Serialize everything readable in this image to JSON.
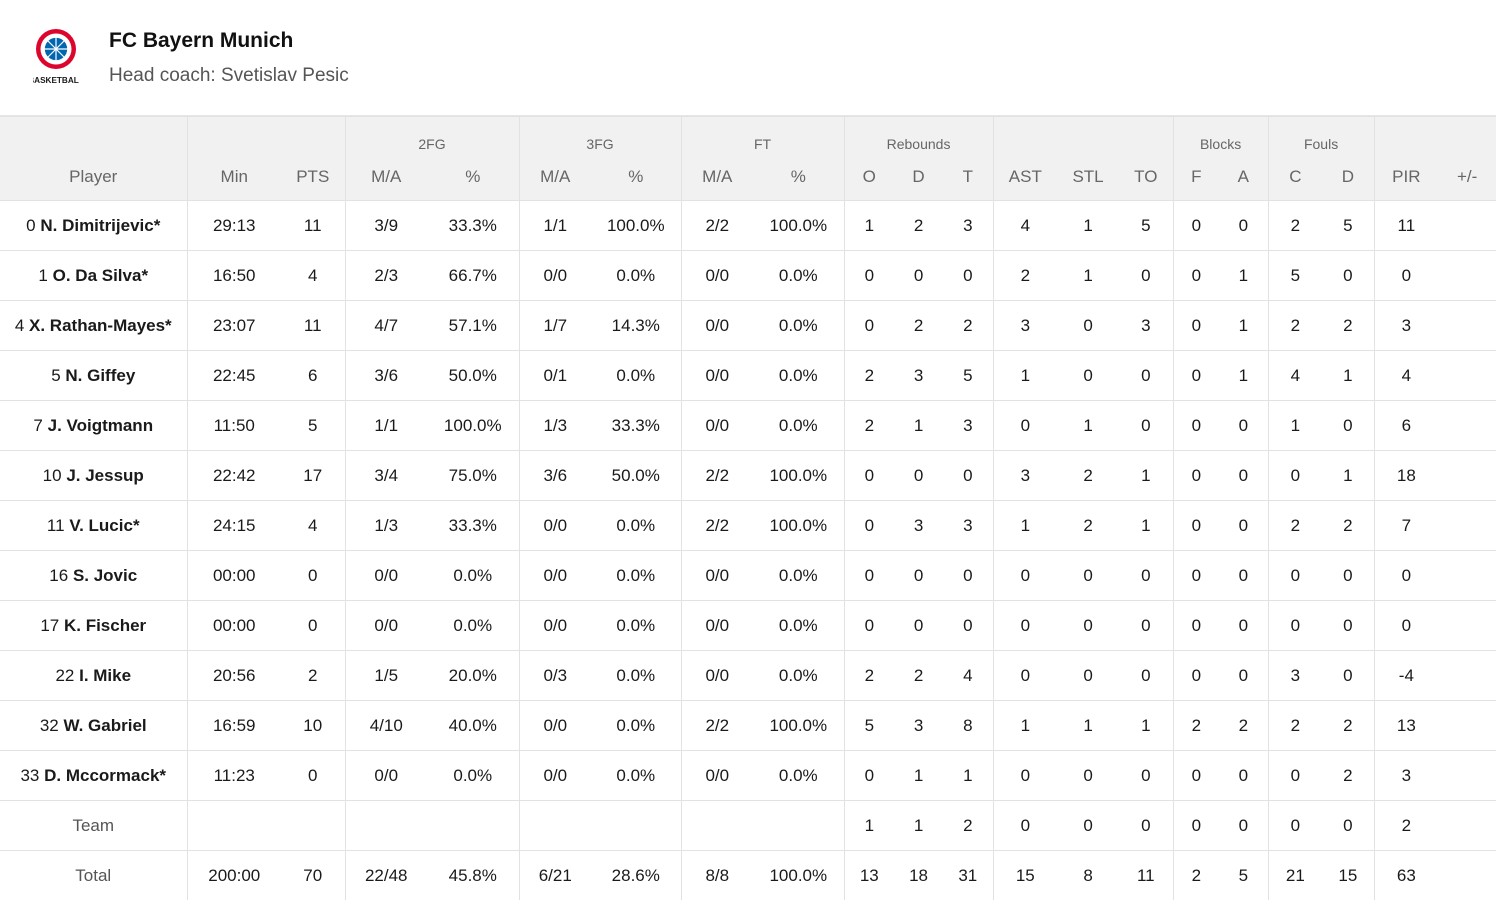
{
  "team": {
    "name": "FC Bayern Munich",
    "coach_line": "Head coach: Svetislav Pesic",
    "logo_text": "BASKETBALL",
    "colors": {
      "red": "#dc052d",
      "blue": "#0066b2"
    }
  },
  "groups": {
    "fg2": "2FG",
    "fg3": "3FG",
    "ft": "FT",
    "reb": "Rebounds",
    "blk": "Blocks",
    "foul": "Fouls"
  },
  "columns": [
    "Player",
    "Min",
    "PTS",
    "M/A",
    "%",
    "M/A",
    "%",
    "M/A",
    "%",
    "O",
    "D",
    "T",
    "AST",
    "STL",
    "TO",
    "F",
    "A",
    "C",
    "D",
    "PIR",
    "+/-"
  ],
  "rows": [
    {
      "num": "0",
      "name": "N. Dimitrijevic*",
      "cells": [
        "29:13",
        "11",
        "3/9",
        "33.3%",
        "1/1",
        "100.0%",
        "2/2",
        "100.0%",
        "1",
        "2",
        "3",
        "4",
        "1",
        "5",
        "0",
        "0",
        "2",
        "5",
        "11",
        ""
      ]
    },
    {
      "num": "1",
      "name": "O. Da Silva*",
      "cells": [
        "16:50",
        "4",
        "2/3",
        "66.7%",
        "0/0",
        "0.0%",
        "0/0",
        "0.0%",
        "0",
        "0",
        "0",
        "2",
        "1",
        "0",
        "0",
        "1",
        "5",
        "0",
        "0",
        ""
      ]
    },
    {
      "num": "4",
      "name": "X. Rathan-Mayes*",
      "cells": [
        "23:07",
        "11",
        "4/7",
        "57.1%",
        "1/7",
        "14.3%",
        "0/0",
        "0.0%",
        "0",
        "2",
        "2",
        "3",
        "0",
        "3",
        "0",
        "1",
        "2",
        "2",
        "3",
        ""
      ]
    },
    {
      "num": "5",
      "name": "N. Giffey",
      "cells": [
        "22:45",
        "6",
        "3/6",
        "50.0%",
        "0/1",
        "0.0%",
        "0/0",
        "0.0%",
        "2",
        "3",
        "5",
        "1",
        "0",
        "0",
        "0",
        "1",
        "4",
        "1",
        "4",
        ""
      ]
    },
    {
      "num": "7",
      "name": "J. Voigtmann",
      "cells": [
        "11:50",
        "5",
        "1/1",
        "100.0%",
        "1/3",
        "33.3%",
        "0/0",
        "0.0%",
        "2",
        "1",
        "3",
        "0",
        "1",
        "0",
        "0",
        "0",
        "1",
        "0",
        "6",
        ""
      ]
    },
    {
      "num": "10",
      "name": "J. Jessup",
      "cells": [
        "22:42",
        "17",
        "3/4",
        "75.0%",
        "3/6",
        "50.0%",
        "2/2",
        "100.0%",
        "0",
        "0",
        "0",
        "3",
        "2",
        "1",
        "0",
        "0",
        "0",
        "1",
        "18",
        ""
      ]
    },
    {
      "num": "11",
      "name": "V. Lucic*",
      "cells": [
        "24:15",
        "4",
        "1/3",
        "33.3%",
        "0/0",
        "0.0%",
        "2/2",
        "100.0%",
        "0",
        "3",
        "3",
        "1",
        "2",
        "1",
        "0",
        "0",
        "2",
        "2",
        "7",
        ""
      ]
    },
    {
      "num": "16",
      "name": "S. Jovic",
      "cells": [
        "00:00",
        "0",
        "0/0",
        "0.0%",
        "0/0",
        "0.0%",
        "0/0",
        "0.0%",
        "0",
        "0",
        "0",
        "0",
        "0",
        "0",
        "0",
        "0",
        "0",
        "0",
        "0",
        ""
      ]
    },
    {
      "num": "17",
      "name": "K. Fischer",
      "cells": [
        "00:00",
        "0",
        "0/0",
        "0.0%",
        "0/0",
        "0.0%",
        "0/0",
        "0.0%",
        "0",
        "0",
        "0",
        "0",
        "0",
        "0",
        "0",
        "0",
        "0",
        "0",
        "0",
        ""
      ]
    },
    {
      "num": "22",
      "name": "I. Mike",
      "cells": [
        "20:56",
        "2",
        "1/5",
        "20.0%",
        "0/3",
        "0.0%",
        "0/0",
        "0.0%",
        "2",
        "2",
        "4",
        "0",
        "0",
        "0",
        "0",
        "0",
        "3",
        "0",
        "-4",
        ""
      ]
    },
    {
      "num": "32",
      "name": "W. Gabriel",
      "cells": [
        "16:59",
        "10",
        "4/10",
        "40.0%",
        "0/0",
        "0.0%",
        "2/2",
        "100.0%",
        "5",
        "3",
        "8",
        "1",
        "1",
        "1",
        "2",
        "2",
        "2",
        "2",
        "13",
        ""
      ]
    },
    {
      "num": "33",
      "name": "D. Mccormack*",
      "cells": [
        "11:23",
        "0",
        "0/0",
        "0.0%",
        "0/0",
        "0.0%",
        "0/0",
        "0.0%",
        "0",
        "1",
        "1",
        "0",
        "0",
        "0",
        "0",
        "0",
        "0",
        "2",
        "3",
        ""
      ]
    }
  ],
  "team_row": {
    "label": "Team",
    "cells": [
      "",
      "",
      "",
      "",
      "",
      "",
      "",
      "",
      "1",
      "1",
      "2",
      "0",
      "0",
      "0",
      "0",
      "0",
      "0",
      "0",
      "2",
      ""
    ]
  },
  "total_row": {
    "label": "Total",
    "cells": [
      "200:00",
      "70",
      "22/48",
      "45.8%",
      "6/21",
      "28.6%",
      "8/8",
      "100.0%",
      "13",
      "18",
      "31",
      "15",
      "8",
      "11",
      "2",
      "5",
      "21",
      "15",
      "63",
      ""
    ]
  }
}
